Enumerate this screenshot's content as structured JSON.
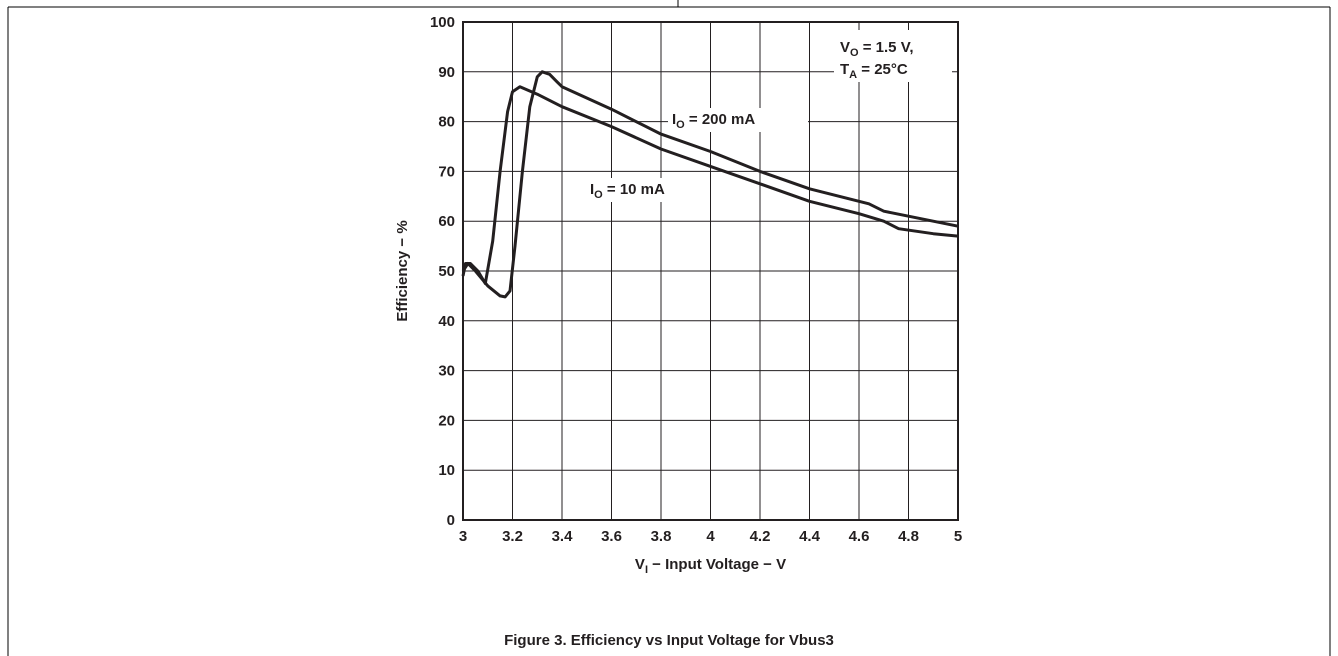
{
  "chart_data": {
    "type": "line",
    "xlabel": [
      {
        "text": "V"
      },
      {
        "text": "I",
        "sub": true
      },
      {
        "text": " − Input Voltage − V"
      }
    ],
    "ylabel": [
      {
        "text": "Efficiency − %"
      }
    ],
    "caption": "Figure 3. Efficiency vs Input Voltage for Vbus3",
    "annotations": [
      [
        {
          "text": "V"
        },
        {
          "text": "O",
          "sub": true
        },
        {
          "text": " = 1.5 V,"
        }
      ],
      [
        {
          "text": "T"
        },
        {
          "text": "A",
          "sub": true
        },
        {
          "text": " = 25°C"
        }
      ]
    ],
    "xlim": [
      3,
      5
    ],
    "xticks": [
      3,
      3.2,
      3.4,
      3.6,
      3.8,
      4,
      4.2,
      4.4,
      4.6,
      4.8,
      5
    ],
    "ylim": [
      0,
      100
    ],
    "yticks": [
      0,
      10,
      20,
      30,
      40,
      50,
      60,
      70,
      80,
      90,
      100
    ],
    "grid": true,
    "series": [
      {
        "label": [
          {
            "text": "I"
          },
          {
            "text": "O",
            "sub": true
          },
          {
            "text": " = 200 mA"
          }
        ],
        "color": "#231f20",
        "x": [
          3.0,
          3.02,
          3.05,
          3.1,
          3.15,
          3.17,
          3.19,
          3.21,
          3.24,
          3.27,
          3.3,
          3.32,
          3.35,
          3.38,
          3.4,
          3.6,
          3.8,
          4.0,
          4.2,
          4.4,
          4.6,
          4.64,
          4.7,
          4.8,
          5.0
        ],
        "values": [
          50,
          51.5,
          50,
          47,
          45,
          44.8,
          46,
          55,
          70,
          83,
          89,
          90,
          89.5,
          88,
          87,
          82.5,
          77.5,
          74,
          70,
          66.5,
          64,
          63.5,
          62,
          61,
          59
        ]
      },
      {
        "label": [
          {
            "text": "I"
          },
          {
            "text": "O",
            "sub": true
          },
          {
            "text": " = 10 mA"
          }
        ],
        "color": "#231f20",
        "x": [
          3.0,
          3.01,
          3.03,
          3.06,
          3.09,
          3.12,
          3.15,
          3.18,
          3.2,
          3.23,
          3.3,
          3.4,
          3.6,
          3.8,
          4.0,
          4.2,
          4.4,
          4.6,
          4.7,
          4.76,
          4.9,
          5.0
        ],
        "values": [
          49,
          51.5,
          51.5,
          50,
          47.5,
          56,
          70,
          82,
          86,
          87,
          85.5,
          83,
          79,
          74.5,
          71,
          67.5,
          64,
          61.5,
          60,
          58.5,
          57.5,
          57
        ]
      }
    ]
  }
}
